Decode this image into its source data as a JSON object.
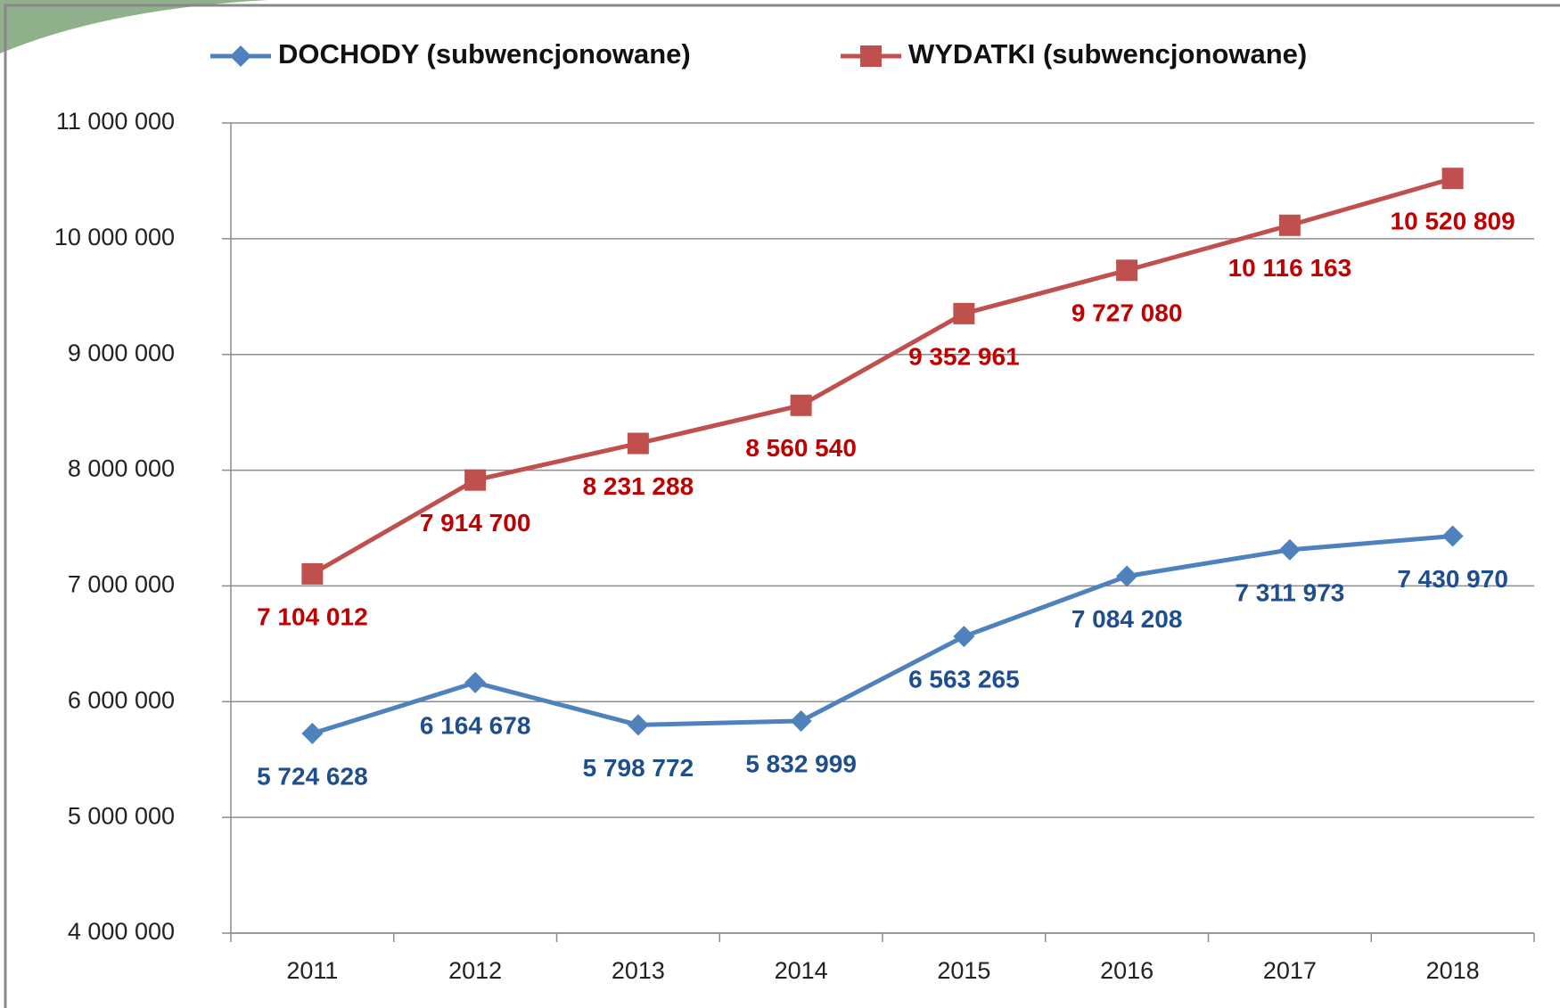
{
  "chart_data": {
    "type": "line",
    "categories": [
      "2011",
      "2012",
      "2013",
      "2014",
      "2015",
      "2016",
      "2017",
      "2018"
    ],
    "series": [
      {
        "name": "DOCHODY (subwencjonowane)",
        "color": "#4f81bd",
        "label_color": "#1f4e8c",
        "values": [
          5724628,
          6164678,
          5798772,
          5832999,
          6563265,
          7084208,
          7311973,
          7430970
        ],
        "value_labels": [
          "5 724 628",
          "6 164 678",
          "5 798 772",
          "5 832 999",
          "6 563 265",
          "7 084 208",
          "7 311 973",
          "7 430 970"
        ]
      },
      {
        "name": "WYDATKI (subwencjonowane)",
        "color": "#c0504d",
        "label_color": "#c00000",
        "values": [
          7104012,
          7914700,
          8231288,
          8560540,
          9352961,
          9727080,
          10116163,
          10520809
        ],
        "value_labels": [
          "7 104 012",
          "7 914 700",
          "8 231 288",
          "8 560 540",
          "9 352 961",
          "9 727 080",
          "10 116 163",
          "10 520 809"
        ]
      }
    ],
    "ylim": [
      4000000,
      11000000
    ],
    "yticks": [
      {
        "value": 4000000,
        "label": "4 000 000"
      },
      {
        "value": 5000000,
        "label": "5 000 000"
      },
      {
        "value": 6000000,
        "label": "6 000 000"
      },
      {
        "value": 7000000,
        "label": "7 000 000"
      },
      {
        "value": 8000000,
        "label": "8 000 000"
      },
      {
        "value": 9000000,
        "label": "9 000 000"
      },
      {
        "value": 10000000,
        "label": "10 000 000"
      },
      {
        "value": 11000000,
        "label": "11 000 000"
      }
    ],
    "grid": true,
    "legend": "top"
  }
}
